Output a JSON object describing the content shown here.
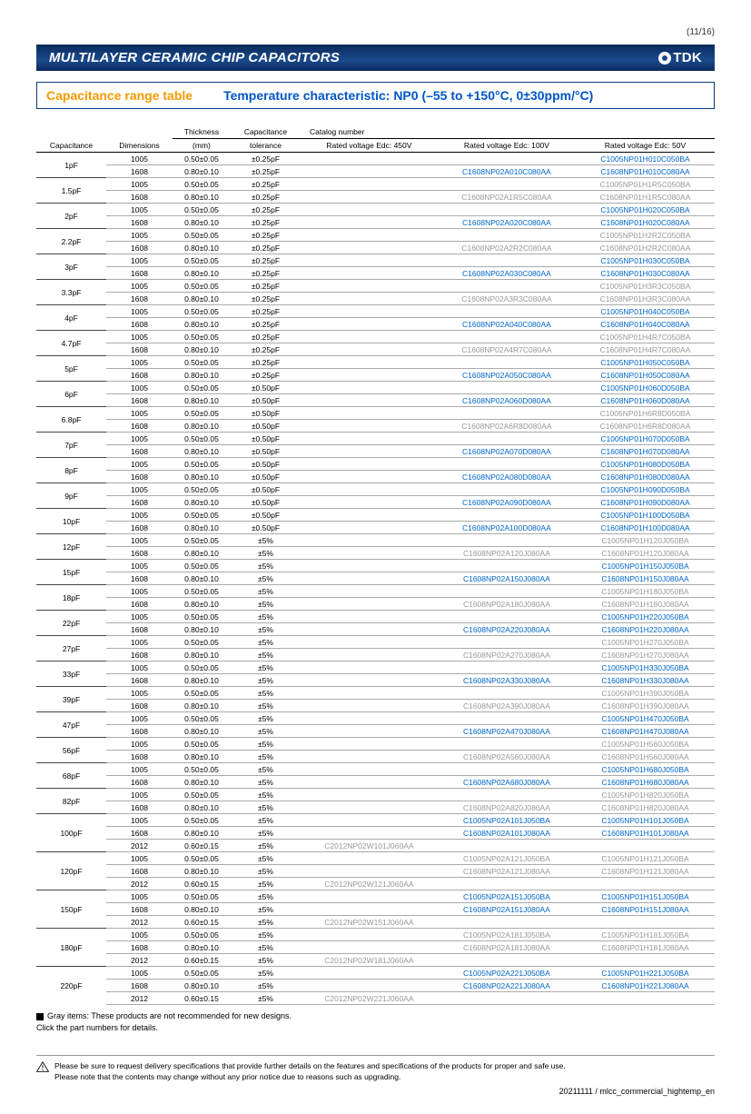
{
  "page_number": "(11/16)",
  "banner_title": "MULTILAYER CERAMIC CHIP CAPACITORS",
  "logo_text": "TDK",
  "subtitle_left": "Capacitance range table",
  "subtitle_right": "Temperature characteristic: NP0 (–55 to +150°C, 0±30ppm/°C)",
  "columns": {
    "capacitance": "Capacitance",
    "dimensions": "Dimensions",
    "thickness": "Thickness",
    "thickness_unit": "(mm)",
    "cap_tol": "Capacitance",
    "cap_tol2": "tolerance",
    "catalog": "Catalog number",
    "v450": "Rated voltage Edc: 450V",
    "v100": "Rated voltage Edc: 100V",
    "v50": "Rated voltage Edc: 50V"
  },
  "note_gray": "Gray items: These products are not recommended for new designs.",
  "note_click": "Click the part numbers for details.",
  "warning1": "Please be sure to request delivery specifications that provide further details on the features and specifications of the products for proper and safe use.",
  "warning2": "Please note that the contents may change without any prior notice due to reasons such as upgrading.",
  "footer": "20211111 / mlcc_commercial_hightemp_en",
  "rows": [
    {
      "cap": "1pF",
      "dim": "1005",
      "thk": "0.50±0.05",
      "tol": "±0.25pF",
      "v450": "",
      "v100": "",
      "v50": "C1005NP01H010C050BA",
      "c50": "blue"
    },
    {
      "cap": "",
      "dim": "1608",
      "thk": "0.80±0.10",
      "tol": "±0.25pF",
      "v450": "",
      "v100": "C1608NP02A010C080AA",
      "c100": "blue",
      "v50": "C1608NP01H010C080AA",
      "c50": "blue"
    },
    {
      "cap": "1.5pF",
      "dim": "1005",
      "thk": "0.50±0.05",
      "tol": "±0.25pF",
      "v450": "",
      "v100": "",
      "v50": "C1005NP01H1R5C050BA",
      "c50": "gray"
    },
    {
      "cap": "",
      "dim": "1608",
      "thk": "0.80±0.10",
      "tol": "±0.25pF",
      "v450": "",
      "v100": "C1608NP02A1R5C080AA",
      "c100": "gray",
      "v50": "C1608NP01H1R5C080AA",
      "c50": "gray"
    },
    {
      "cap": "2pF",
      "dim": "1005",
      "thk": "0.50±0.05",
      "tol": "±0.25pF",
      "v450": "",
      "v100": "",
      "v50": "C1005NP01H020C050BA",
      "c50": "blue"
    },
    {
      "cap": "",
      "dim": "1608",
      "thk": "0.80±0.10",
      "tol": "±0.25pF",
      "v450": "",
      "v100": "C1608NP02A020C080AA",
      "c100": "blue",
      "v50": "C1608NP01H020C080AA",
      "c50": "blue"
    },
    {
      "cap": "2.2pF",
      "dim": "1005",
      "thk": "0.50±0.05",
      "tol": "±0.25pF",
      "v450": "",
      "v100": "",
      "v50": "C1005NP01H2R2C050BA",
      "c50": "gray"
    },
    {
      "cap": "",
      "dim": "1608",
      "thk": "0.80±0.10",
      "tol": "±0.25pF",
      "v450": "",
      "v100": "C1608NP02A2R2C080AA",
      "c100": "gray",
      "v50": "C1608NP01H2R2C080AA",
      "c50": "gray"
    },
    {
      "cap": "3pF",
      "dim": "1005",
      "thk": "0.50±0.05",
      "tol": "±0.25pF",
      "v450": "",
      "v100": "",
      "v50": "C1005NP01H030C050BA",
      "c50": "blue"
    },
    {
      "cap": "",
      "dim": "1608",
      "thk": "0.80±0.10",
      "tol": "±0.25pF",
      "v450": "",
      "v100": "C1608NP02A030C080AA",
      "c100": "blue",
      "v50": "C1608NP01H030C080AA",
      "c50": "blue"
    },
    {
      "cap": "3.3pF",
      "dim": "1005",
      "thk": "0.50±0.05",
      "tol": "±0.25pF",
      "v450": "",
      "v100": "",
      "v50": "C1005NP01H3R3C050BA",
      "c50": "gray"
    },
    {
      "cap": "",
      "dim": "1608",
      "thk": "0.80±0.10",
      "tol": "±0.25pF",
      "v450": "",
      "v100": "C1608NP02A3R3C080AA",
      "c100": "gray",
      "v50": "C1608NP01H3R3C080AA",
      "c50": "gray"
    },
    {
      "cap": "4pF",
      "dim": "1005",
      "thk": "0.50±0.05",
      "tol": "±0.25pF",
      "v450": "",
      "v100": "",
      "v50": "C1005NP01H040C050BA",
      "c50": "blue"
    },
    {
      "cap": "",
      "dim": "1608",
      "thk": "0.80±0.10",
      "tol": "±0.25pF",
      "v450": "",
      "v100": "C1608NP02A040C080AA",
      "c100": "blue",
      "v50": "C1608NP01H040C080AA",
      "c50": "blue"
    },
    {
      "cap": "4.7pF",
      "dim": "1005",
      "thk": "0.50±0.05",
      "tol": "±0.25pF",
      "v450": "",
      "v100": "",
      "v50": "C1005NP01H4R7C050BA",
      "c50": "gray"
    },
    {
      "cap": "",
      "dim": "1608",
      "thk": "0.80±0.10",
      "tol": "±0.25pF",
      "v450": "",
      "v100": "C1608NP02A4R7C080AA",
      "c100": "gray",
      "v50": "C1608NP01H4R7C080AA",
      "c50": "gray"
    },
    {
      "cap": "5pF",
      "dim": "1005",
      "thk": "0.50±0.05",
      "tol": "±0.25pF",
      "v450": "",
      "v100": "",
      "v50": "C1005NP01H050C050BA",
      "c50": "blue"
    },
    {
      "cap": "",
      "dim": "1608",
      "thk": "0.80±0.10",
      "tol": "±0.25pF",
      "v450": "",
      "v100": "C1608NP02A050C080AA",
      "c100": "blue",
      "v50": "C1608NP01H050C080AA",
      "c50": "blue"
    },
    {
      "cap": "6pF",
      "dim": "1005",
      "thk": "0.50±0.05",
      "tol": "±0.50pF",
      "v450": "",
      "v100": "",
      "v50": "C1005NP01H060D050BA",
      "c50": "blue"
    },
    {
      "cap": "",
      "dim": "1608",
      "thk": "0.80±0.10",
      "tol": "±0.50pF",
      "v450": "",
      "v100": "C1608NP02A060D080AA",
      "c100": "blue",
      "v50": "C1608NP01H060D080AA",
      "c50": "blue"
    },
    {
      "cap": "6.8pF",
      "dim": "1005",
      "thk": "0.50±0.05",
      "tol": "±0.50pF",
      "v450": "",
      "v100": "",
      "v50": "C1005NP01H6R8D050BA",
      "c50": "gray"
    },
    {
      "cap": "",
      "dim": "1608",
      "thk": "0.80±0.10",
      "tol": "±0.50pF",
      "v450": "",
      "v100": "C1608NP02A6R8D080AA",
      "c100": "gray",
      "v50": "C1608NP01H6R8D080AA",
      "c50": "gray"
    },
    {
      "cap": "7pF",
      "dim": "1005",
      "thk": "0.50±0.05",
      "tol": "±0.50pF",
      "v450": "",
      "v100": "",
      "v50": "C1005NP01H070D050BA",
      "c50": "blue"
    },
    {
      "cap": "",
      "dim": "1608",
      "thk": "0.80±0.10",
      "tol": "±0.50pF",
      "v450": "",
      "v100": "C1608NP02A070D080AA",
      "c100": "blue",
      "v50": "C1608NP01H070D080AA",
      "c50": "blue"
    },
    {
      "cap": "8pF",
      "dim": "1005",
      "thk": "0.50±0.05",
      "tol": "±0.50pF",
      "v450": "",
      "v100": "",
      "v50": "C1005NP01H080D050BA",
      "c50": "blue"
    },
    {
      "cap": "",
      "dim": "1608",
      "thk": "0.80±0.10",
      "tol": "±0.50pF",
      "v450": "",
      "v100": "C1608NP02A080D080AA",
      "c100": "blue",
      "v50": "C1608NP01H080D080AA",
      "c50": "blue"
    },
    {
      "cap": "9pF",
      "dim": "1005",
      "thk": "0.50±0.05",
      "tol": "±0.50pF",
      "v450": "",
      "v100": "",
      "v50": "C1005NP01H090D050BA",
      "c50": "blue"
    },
    {
      "cap": "",
      "dim": "1608",
      "thk": "0.80±0.10",
      "tol": "±0.50pF",
      "v450": "",
      "v100": "C1608NP02A090D080AA",
      "c100": "blue",
      "v50": "C1608NP01H090D080AA",
      "c50": "blue"
    },
    {
      "cap": "10pF",
      "dim": "1005",
      "thk": "0.50±0.05",
      "tol": "±0.50pF",
      "v450": "",
      "v100": "",
      "v50": "C1005NP01H100D050BA",
      "c50": "blue"
    },
    {
      "cap": "",
      "dim": "1608",
      "thk": "0.80±0.10",
      "tol": "±0.50pF",
      "v450": "",
      "v100": "C1608NP02A100D080AA",
      "c100": "blue",
      "v50": "C1608NP01H100D080AA",
      "c50": "blue"
    },
    {
      "cap": "12pF",
      "dim": "1005",
      "thk": "0.50±0.05",
      "tol": "±5%",
      "v450": "",
      "v100": "",
      "v50": "C1005NP01H120J050BA",
      "c50": "gray"
    },
    {
      "cap": "",
      "dim": "1608",
      "thk": "0.80±0.10",
      "tol": "±5%",
      "v450": "",
      "v100": "C1608NP02A120J080AA",
      "c100": "gray",
      "v50": "C1608NP01H120J080AA",
      "c50": "gray"
    },
    {
      "cap": "15pF",
      "dim": "1005",
      "thk": "0.50±0.05",
      "tol": "±5%",
      "v450": "",
      "v100": "",
      "v50": "C1005NP01H150J050BA",
      "c50": "blue"
    },
    {
      "cap": "",
      "dim": "1608",
      "thk": "0.80±0.10",
      "tol": "±5%",
      "v450": "",
      "v100": "C1608NP02A150J080AA",
      "c100": "blue",
      "v50": "C1608NP01H150J080AA",
      "c50": "blue"
    },
    {
      "cap": "18pF",
      "dim": "1005",
      "thk": "0.50±0.05",
      "tol": "±5%",
      "v450": "",
      "v100": "",
      "v50": "C1005NP01H180J050BA",
      "c50": "gray"
    },
    {
      "cap": "",
      "dim": "1608",
      "thk": "0.80±0.10",
      "tol": "±5%",
      "v450": "",
      "v100": "C1608NP02A180J080AA",
      "c100": "gray",
      "v50": "C1608NP01H180J080AA",
      "c50": "gray"
    },
    {
      "cap": "22pF",
      "dim": "1005",
      "thk": "0.50±0.05",
      "tol": "±5%",
      "v450": "",
      "v100": "",
      "v50": "C1005NP01H220J050BA",
      "c50": "blue"
    },
    {
      "cap": "",
      "dim": "1608",
      "thk": "0.80±0.10",
      "tol": "±5%",
      "v450": "",
      "v100": "C1608NP02A220J080AA",
      "c100": "blue",
      "v50": "C1608NP01H220J080AA",
      "c50": "blue"
    },
    {
      "cap": "27pF",
      "dim": "1005",
      "thk": "0.50±0.05",
      "tol": "±5%",
      "v450": "",
      "v100": "",
      "v50": "C1005NP01H270J050BA",
      "c50": "gray"
    },
    {
      "cap": "",
      "dim": "1608",
      "thk": "0.80±0.10",
      "tol": "±5%",
      "v450": "",
      "v100": "C1608NP02A270J080AA",
      "c100": "gray",
      "v50": "C1608NP01H270J080AA",
      "c50": "gray"
    },
    {
      "cap": "33pF",
      "dim": "1005",
      "thk": "0.50±0.05",
      "tol": "±5%",
      "v450": "",
      "v100": "",
      "v50": "C1005NP01H330J050BA",
      "c50": "blue"
    },
    {
      "cap": "",
      "dim": "1608",
      "thk": "0.80±0.10",
      "tol": "±5%",
      "v450": "",
      "v100": "C1608NP02A330J080AA",
      "c100": "blue",
      "v50": "C1608NP01H330J080AA",
      "c50": "blue"
    },
    {
      "cap": "39pF",
      "dim": "1005",
      "thk": "0.50±0.05",
      "tol": "±5%",
      "v450": "",
      "v100": "",
      "v50": "C1005NP01H390J050BA",
      "c50": "gray"
    },
    {
      "cap": "",
      "dim": "1608",
      "thk": "0.80±0.10",
      "tol": "±5%",
      "v450": "",
      "v100": "C1608NP02A390J080AA",
      "c100": "gray",
      "v50": "C1608NP01H390J080AA",
      "c50": "gray"
    },
    {
      "cap": "47pF",
      "dim": "1005",
      "thk": "0.50±0.05",
      "tol": "±5%",
      "v450": "",
      "v100": "",
      "v50": "C1005NP01H470J050BA",
      "c50": "blue"
    },
    {
      "cap": "",
      "dim": "1608",
      "thk": "0.80±0.10",
      "tol": "±5%",
      "v450": "",
      "v100": "C1608NP02A470J080AA",
      "c100": "blue",
      "v50": "C1608NP01H470J080AA",
      "c50": "blue"
    },
    {
      "cap": "56pF",
      "dim": "1005",
      "thk": "0.50±0.05",
      "tol": "±5%",
      "v450": "",
      "v100": "",
      "v50": "C1005NP01H560J050BA",
      "c50": "gray"
    },
    {
      "cap": "",
      "dim": "1608",
      "thk": "0.80±0.10",
      "tol": "±5%",
      "v450": "",
      "v100": "C1608NP02A560J080AA",
      "c100": "gray",
      "v50": "C1608NP01H560J080AA",
      "c50": "gray"
    },
    {
      "cap": "68pF",
      "dim": "1005",
      "thk": "0.50±0.05",
      "tol": "±5%",
      "v450": "",
      "v100": "",
      "v50": "C1005NP01H680J050BA",
      "c50": "blue"
    },
    {
      "cap": "",
      "dim": "1608",
      "thk": "0.80±0.10",
      "tol": "±5%",
      "v450": "",
      "v100": "C1608NP02A680J080AA",
      "c100": "blue",
      "v50": "C1608NP01H680J080AA",
      "c50": "blue"
    },
    {
      "cap": "82pF",
      "dim": "1005",
      "thk": "0.50±0.05",
      "tol": "±5%",
      "v450": "",
      "v100": "",
      "v50": "C1005NP01H820J050BA",
      "c50": "gray"
    },
    {
      "cap": "",
      "dim": "1608",
      "thk": "0.80±0.10",
      "tol": "±5%",
      "v450": "",
      "v100": "C1608NP02A820J080AA",
      "c100": "gray",
      "v50": "C1608NP01H820J080AA",
      "c50": "gray"
    },
    {
      "cap": "100pF",
      "dim": "1005",
      "thk": "0.50±0.05",
      "tol": "±5%",
      "v450": "",
      "v100": "C1005NP02A101J050BA",
      "c100": "blue",
      "v50": "C1005NP01H101J050BA",
      "c50": "blue"
    },
    {
      "cap": "",
      "dim": "1608",
      "thk": "0.80±0.10",
      "tol": "±5%",
      "v450": "",
      "v100": "C1608NP02A101J080AA",
      "c100": "blue",
      "v50": "C1608NP01H101J080AA",
      "c50": "blue"
    },
    {
      "cap": "",
      "dim": "2012",
      "thk": "0.60±0.15",
      "tol": "±5%",
      "v450": "C2012NP02W101J060AA",
      "c450": "gray",
      "v100": "",
      "v50": ""
    },
    {
      "cap": "120pF",
      "dim": "1005",
      "thk": "0.50±0.05",
      "tol": "±5%",
      "v450": "",
      "v100": "C1005NP02A121J050BA",
      "c100": "gray",
      "v50": "C1005NP01H121J050BA",
      "c50": "gray"
    },
    {
      "cap": "",
      "dim": "1608",
      "thk": "0.80±0.10",
      "tol": "±5%",
      "v450": "",
      "v100": "C1608NP02A121J080AA",
      "c100": "gray",
      "v50": "C1608NP01H121J080AA",
      "c50": "gray"
    },
    {
      "cap": "",
      "dim": "2012",
      "thk": "0.60±0.15",
      "tol": "±5%",
      "v450": "C2012NP02W121J060AA",
      "c450": "gray",
      "v100": "",
      "v50": ""
    },
    {
      "cap": "150pF",
      "dim": "1005",
      "thk": "0.50±0.05",
      "tol": "±5%",
      "v450": "",
      "v100": "C1005NP02A151J050BA",
      "c100": "blue",
      "v50": "C1005NP01H151J050BA",
      "c50": "blue"
    },
    {
      "cap": "",
      "dim": "1608",
      "thk": "0.80±0.10",
      "tol": "±5%",
      "v450": "",
      "v100": "C1608NP02A151J080AA",
      "c100": "blue",
      "v50": "C1608NP01H151J080AA",
      "c50": "blue"
    },
    {
      "cap": "",
      "dim": "2012",
      "thk": "0.60±0.15",
      "tol": "±5%",
      "v450": "C2012NP02W151J060AA",
      "c450": "gray",
      "v100": "",
      "v50": ""
    },
    {
      "cap": "180pF",
      "dim": "1005",
      "thk": "0.50±0.05",
      "tol": "±5%",
      "v450": "",
      "v100": "C1005NP02A181J050BA",
      "c100": "gray",
      "v50": "C1005NP01H181J050BA",
      "c50": "gray"
    },
    {
      "cap": "",
      "dim": "1608",
      "thk": "0.80±0.10",
      "tol": "±5%",
      "v450": "",
      "v100": "C1608NP02A181J080AA",
      "c100": "gray",
      "v50": "C1608NP01H181J080AA",
      "c50": "gray"
    },
    {
      "cap": "",
      "dim": "2012",
      "thk": "0.60±0.15",
      "tol": "±5%",
      "v450": "C2012NP02W181J060AA",
      "c450": "gray",
      "v100": "",
      "v50": ""
    },
    {
      "cap": "220pF",
      "dim": "1005",
      "thk": "0.50±0.05",
      "tol": "±5%",
      "v450": "",
      "v100": "C1005NP02A221J050BA",
      "c100": "blue",
      "v50": "C1005NP01H221J050BA",
      "c50": "blue"
    },
    {
      "cap": "",
      "dim": "1608",
      "thk": "0.80±0.10",
      "tol": "±5%",
      "v450": "",
      "v100": "C1608NP02A221J080AA",
      "c100": "blue",
      "v50": "C1608NP01H221J080AA",
      "c50": "blue"
    },
    {
      "cap": "",
      "dim": "2012",
      "thk": "0.60±0.15",
      "tol": "±5%",
      "v450": "C2012NP02W221J060AA",
      "c450": "gray",
      "v100": "",
      "v50": ""
    }
  ]
}
